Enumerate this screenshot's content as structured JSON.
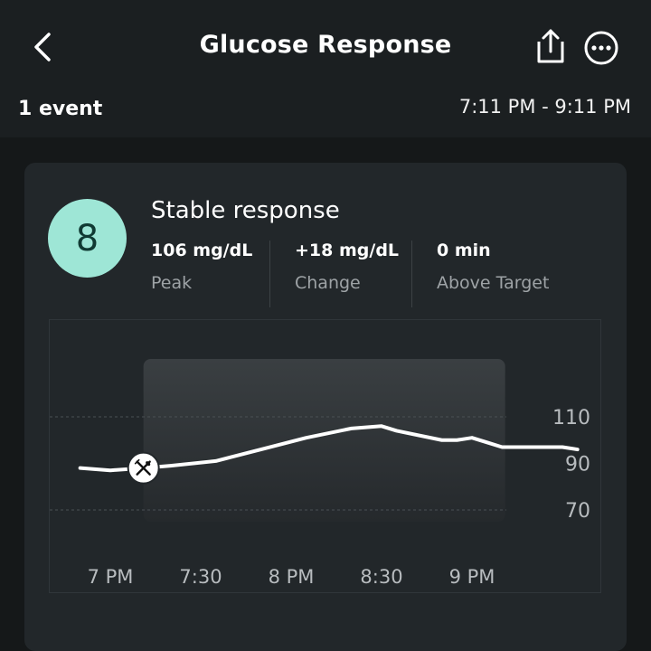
{
  "header": {
    "title": "Glucose Response",
    "back_icon": "chevron-left-icon",
    "share_icon": "share-icon",
    "more_icon": "more-options-icon"
  },
  "summary": {
    "events": "1 event",
    "time_range": "7:11 PM - 9:11 PM"
  },
  "card": {
    "score": "8",
    "score_color": "#9ee6d6",
    "response_label": "Stable response",
    "stats": [
      {
        "value": "106  mg/dL",
        "label": "Peak"
      },
      {
        "value": "+18  mg/dL",
        "label": "Change"
      },
      {
        "value": "0  min",
        "label": "Above Target"
      }
    ]
  },
  "chart_data": {
    "type": "line",
    "x_tick_labels": [
      "7 PM",
      "7:30",
      "8 PM",
      "8:30",
      "9 PM"
    ],
    "y_tick_labels": [
      "110",
      "90",
      "70"
    ],
    "ylim": [
      60,
      122
    ],
    "y_gridlines": [
      110,
      70
    ],
    "event_window": [
      "7:11 PM",
      "9:11 PM"
    ],
    "meal_marker_icon": "fork-knife-icon",
    "meal_marker_time": "7:11 PM",
    "series": [
      {
        "time": [
          "6:50",
          "7:00",
          "7:11",
          "7:20",
          "7:35",
          "7:50",
          "8:05",
          "8:20",
          "8:30",
          "8:35",
          "8:50",
          "8:55",
          "9:00",
          "9:05",
          "9:10",
          "9:15",
          "9:20",
          "9:30",
          "9:35"
        ],
        "minutes_after_7pm": [
          -10,
          0,
          11,
          20,
          35,
          50,
          65,
          80,
          90,
          95,
          110,
          115,
          120,
          125,
          130,
          135,
          140,
          150,
          155
        ],
        "values": [
          88,
          87,
          88,
          89,
          91,
          96,
          101,
          105,
          106,
          104,
          100,
          100,
          101,
          99,
          97,
          97,
          97,
          97,
          96
        ]
      }
    ]
  }
}
